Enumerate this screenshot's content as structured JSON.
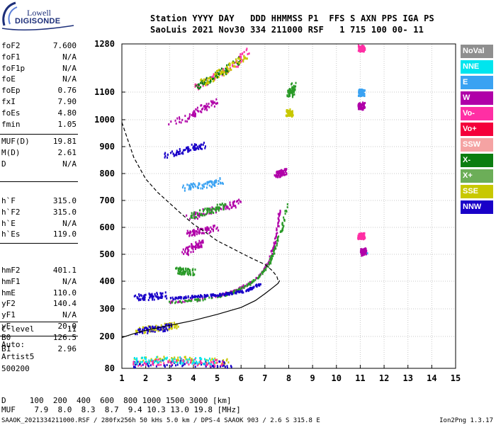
{
  "logo": {
    "line1": "Lowell",
    "line2": "DIGISONDE"
  },
  "header": {
    "line1": "Station YYYY DAY   DDD HHMMSS P1  FFS S AXN PPS IGA PS",
    "line2": "SaoLuis 2021 Nov30 334 211000 RSF   1 715 100 00- 11"
  },
  "params_group1": [
    {
      "label": "foF2",
      "value": "7.600"
    },
    {
      "label": "foF1",
      "value": "N/A"
    },
    {
      "label": "foF1p",
      "value": "N/A"
    },
    {
      "label": "foE",
      "value": "N/A"
    },
    {
      "label": "foEp",
      "value": "0.76"
    },
    {
      "label": "fxI",
      "value": "7.90"
    },
    {
      "label": "foEs",
      "value": "4.80"
    },
    {
      "label": "fmin",
      "value": "1.05"
    }
  ],
  "params_group2": [
    {
      "label": "MUF(D)",
      "value": "19.81"
    },
    {
      "label": "M(D)",
      "value": "2.61"
    },
    {
      "label": "D",
      "value": "N/A"
    }
  ],
  "params_group3": [
    {
      "label": "h`F",
      "value": "315.0"
    },
    {
      "label": "h`F2",
      "value": "315.0"
    },
    {
      "label": "h`E",
      "value": "N/A"
    },
    {
      "label": "h`Es",
      "value": "119.0"
    }
  ],
  "params_group4": [
    {
      "label": "hmF2",
      "value": "401.1"
    },
    {
      "label": "hmF1",
      "value": "N/A"
    },
    {
      "label": "hmE",
      "value": "110.0"
    },
    {
      "label": "yF2",
      "value": "140.4"
    },
    {
      "label": "yF1",
      "value": "N/A"
    },
    {
      "label": "yE",
      "value": "20.0"
    },
    {
      "label": "B0",
      "value": "126.5"
    },
    {
      "label": "B1",
      "value": "2.96"
    }
  ],
  "params_group5": [
    {
      "label": "C-level",
      "value": "11"
    }
  ],
  "autoscale": {
    "line1": "Auto:",
    "line2": "Artist5",
    "line3": "500200"
  },
  "muf_table": {
    "row1": "D     100  200  400  600  800 1000 1500 3000 [km]",
    "row2": "MUF    7.9  8.0  8.3  8.7  9.4 10.3 13.0 19.8 [MHz]"
  },
  "footer": "SAAOK_2021334211000.RSF / 280fx256h 50 kHs 5.0 km / DPS-4 SAAOK 903 / 2.6 S 315.8 E",
  "version": "Ion2Png 1.3.17",
  "legend": [
    {
      "label": "NoVal",
      "color": "#8f8f8f"
    },
    {
      "label": "NNE",
      "color": "#00e5ee"
    },
    {
      "label": "E",
      "color": "#3aa2f2"
    },
    {
      "label": "W",
      "color": "#b000a8"
    },
    {
      "label": "Vo-",
      "color": "#ff2fa4"
    },
    {
      "label": "Vo+",
      "color": "#f4003a"
    },
    {
      "label": "SSW",
      "color": "#f5a3a3"
    },
    {
      "label": "X-",
      "color": "#0b7d10"
    },
    {
      "label": "X+",
      "color": "#6cae58"
    },
    {
      "label": "SSE",
      "color": "#c8c800"
    },
    {
      "label": "NNW",
      "color": "#1900c8"
    }
  ],
  "chart_data": {
    "type": "scatter",
    "xlabel": "",
    "ylabel": "",
    "xlim": [
      1,
      15
    ],
    "ylim": [
      80,
      1280
    ],
    "xticks": [
      "1",
      "2",
      "3",
      "4",
      "5",
      "6",
      "7",
      "8",
      "9",
      "10",
      "11",
      "12",
      "13",
      "14",
      "15"
    ],
    "yticks": [
      "80",
      "200",
      "300",
      "400",
      "500",
      "600",
      "700",
      "800",
      "900",
      "1000",
      "1100",
      "1280"
    ],
    "grid": true,
    "series": [
      {
        "kind": "trace",
        "color": "#b000a8",
        "points": [
          [
            3.0,
            328
          ],
          [
            4.0,
            335
          ],
          [
            5.0,
            350
          ],
          [
            5.6,
            365
          ],
          [
            6.0,
            380
          ],
          [
            6.4,
            400
          ],
          [
            6.8,
            430
          ],
          [
            7.1,
            470
          ],
          [
            7.35,
            530
          ],
          [
            7.5,
            600
          ],
          [
            7.6,
            670
          ]
        ]
      },
      {
        "kind": "trace",
        "color": "#2a9a28",
        "points": [
          [
            3.0,
            326
          ],
          [
            4.0,
            333
          ],
          [
            5.0,
            347
          ],
          [
            5.6,
            362
          ],
          [
            6.0,
            377
          ],
          [
            6.4,
            398
          ],
          [
            6.8,
            427
          ],
          [
            7.15,
            467
          ],
          [
            7.4,
            525
          ],
          [
            7.7,
            600
          ],
          [
            7.9,
            690
          ]
        ]
      },
      {
        "kind": "trace",
        "color": "#1900c8",
        "points": [
          [
            3.0,
            340
          ],
          [
            4.3,
            350
          ],
          [
            5.2,
            355
          ],
          [
            6.2,
            368
          ],
          [
            6.8,
            395
          ]
        ]
      },
      {
        "kind": "band",
        "color": "#b000a8",
        "points": [
          [
            3.8,
            640
          ],
          [
            4.5,
            660
          ],
          [
            5.4,
            680
          ],
          [
            5.9,
            700
          ]
        ]
      },
      {
        "kind": "band",
        "color": "#2a9a28",
        "points": [
          [
            3.9,
            645
          ],
          [
            4.6,
            665
          ],
          [
            5.3,
            683
          ]
        ]
      },
      {
        "kind": "band",
        "color": "#b000a8",
        "points": [
          [
            3.6,
            510
          ],
          [
            4.0,
            530
          ],
          [
            4.4,
            550
          ]
        ]
      },
      {
        "kind": "band",
        "color": "#1900c8",
        "points": [
          [
            1.6,
            345
          ],
          [
            2.2,
            348
          ],
          [
            2.8,
            352
          ]
        ]
      },
      {
        "kind": "band",
        "color": "#c8c800",
        "points": [
          [
            1.5,
            225
          ],
          [
            2.2,
            232
          ],
          [
            2.9,
            240
          ],
          [
            3.3,
            245
          ]
        ]
      },
      {
        "kind": "band",
        "color": "#1900c8",
        "points": [
          [
            1.5,
            222
          ],
          [
            2.3,
            230
          ],
          [
            3.0,
            238
          ]
        ]
      },
      {
        "kind": "band",
        "color": "#b000a8",
        "points": [
          [
            3.0,
            990
          ],
          [
            3.8,
            1015
          ],
          [
            4.5,
            1050
          ],
          [
            4.9,
            1070
          ]
        ]
      },
      {
        "kind": "band",
        "color": "#ff2fa4",
        "points": [
          [
            4.0,
            1120
          ],
          [
            4.7,
            1150
          ],
          [
            5.3,
            1180
          ],
          [
            5.9,
            1220
          ],
          [
            6.3,
            1260
          ]
        ]
      },
      {
        "kind": "band",
        "color": "#0b7d10",
        "points": [
          [
            4.1,
            1125
          ],
          [
            4.8,
            1160
          ],
          [
            5.4,
            1190
          ],
          [
            6.0,
            1230
          ]
        ]
      },
      {
        "kind": "band",
        "color": "#c8c800",
        "points": [
          [
            4.2,
            1130
          ],
          [
            4.9,
            1165
          ],
          [
            5.5,
            1195
          ],
          [
            6.2,
            1240
          ]
        ]
      },
      {
        "kind": "band",
        "color": "#1900c8",
        "points": [
          [
            2.8,
            870
          ],
          [
            3.4,
            885
          ],
          [
            4.0,
            900
          ],
          [
            4.4,
            910
          ]
        ]
      },
      {
        "kind": "band",
        "color": "#3aa2f2",
        "points": [
          [
            3.6,
            750
          ],
          [
            4.2,
            758
          ],
          [
            4.7,
            765
          ],
          [
            5.2,
            775
          ]
        ]
      },
      {
        "kind": "band",
        "color": "#2a9a28",
        "points": [
          [
            3.3,
            445
          ],
          [
            3.6,
            440
          ],
          [
            4.0,
            437
          ]
        ]
      },
      {
        "kind": "band",
        "color": "#b000a8",
        "points": [
          [
            3.8,
            580
          ],
          [
            4.3,
            590
          ],
          [
            4.9,
            600
          ]
        ]
      },
      {
        "kind": "band",
        "color": "#c8c800",
        "points": [
          [
            1.5,
            110
          ],
          [
            2.5,
            118
          ],
          [
            3.5,
            118
          ],
          [
            4.5,
            110
          ],
          [
            5.5,
            108
          ]
        ]
      },
      {
        "kind": "band",
        "color": "#1900c8",
        "points": [
          [
            1.4,
            98
          ],
          [
            2.5,
            102
          ],
          [
            3.6,
            100
          ],
          [
            4.8,
            99
          ],
          [
            5.5,
            98
          ]
        ]
      },
      {
        "kind": "band",
        "color": "#ff2fa4",
        "points": [
          [
            1.5,
            104
          ],
          [
            2.5,
            108
          ],
          [
            3.4,
            110
          ],
          [
            4.5,
            104
          ],
          [
            5.4,
            104
          ]
        ]
      },
      {
        "kind": "band",
        "color": "#00e5ee",
        "points": [
          [
            1.5,
            112
          ],
          [
            2.6,
            115
          ],
          [
            3.8,
            112
          ],
          [
            4.8,
            110
          ]
        ]
      },
      {
        "kind": "band",
        "color": "#b000a8",
        "points": [
          [
            7.5,
            800
          ],
          [
            7.8,
            810
          ]
        ]
      },
      {
        "kind": "band",
        "color": "#2a9a28",
        "points": [
          [
            8.0,
            1095
          ],
          [
            8.1,
            1105
          ],
          [
            8.2,
            1130
          ]
        ]
      },
      {
        "kind": "band",
        "color": "#c8c800",
        "points": [
          [
            7.95,
            1025
          ],
          [
            8.05,
            1030
          ]
        ]
      },
      {
        "kind": "band",
        "color": "#b000a8",
        "points": [
          [
            11.0,
            1050
          ],
          [
            11.05,
            1055
          ]
        ]
      },
      {
        "kind": "band",
        "color": "#3aa2f2",
        "points": [
          [
            11.0,
            1100
          ],
          [
            11.05,
            1102
          ]
        ]
      },
      {
        "kind": "band",
        "color": "#ff2fa4",
        "points": [
          [
            11.0,
            1265
          ],
          [
            11.05,
            1268
          ]
        ]
      },
      {
        "kind": "band",
        "color": "#b000a8",
        "points": [
          [
            11.1,
            510
          ],
          [
            11.15,
            515
          ]
        ]
      },
      {
        "kind": "band",
        "color": "#3aa2f2",
        "points": [
          [
            11.3,
            505
          ]
        ]
      },
      {
        "kind": "band",
        "color": "#ff2fa4",
        "points": [
          [
            11.0,
            570
          ],
          [
            11.05,
            572
          ]
        ]
      }
    ],
    "profile_solid": [
      [
        1.0,
        196
      ],
      [
        1.5,
        210
      ],
      [
        2.0,
        222
      ],
      [
        3.0,
        240
      ],
      [
        4.0,
        258
      ],
      [
        5.0,
        280
      ],
      [
        6.0,
        305
      ],
      [
        6.6,
        330
      ],
      [
        7.0,
        355
      ],
      [
        7.3,
        375
      ],
      [
        7.55,
        392
      ],
      [
        7.62,
        403
      ]
    ],
    "profile_dashed": [
      [
        1.0,
        990
      ],
      [
        1.5,
        860
      ],
      [
        2.0,
        780
      ],
      [
        2.5,
        730
      ],
      [
        3.0,
        690
      ],
      [
        3.5,
        650
      ],
      [
        4.0,
        612
      ],
      [
        4.5,
        582
      ],
      [
        5.0,
        550
      ],
      [
        5.5,
        528
      ],
      [
        6.0,
        505
      ],
      [
        6.5,
        483
      ],
      [
        7.0,
        462
      ],
      [
        7.3,
        440
      ],
      [
        7.5,
        418
      ],
      [
        7.55,
        403
      ]
    ]
  }
}
